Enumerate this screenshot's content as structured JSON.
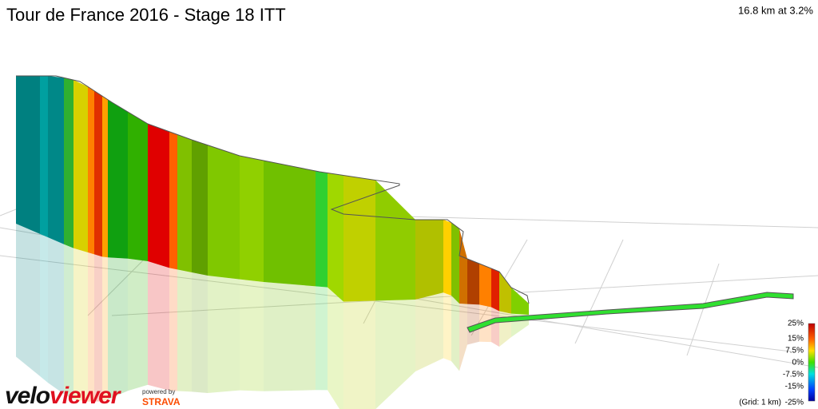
{
  "header": {
    "title": "Tour de France 2016 - Stage 18 ITT",
    "summary": "16.8 km at 3.2%"
  },
  "legend": {
    "labels": [
      "25%",
      "15%",
      "7.5%",
      "0%",
      "-7.5%",
      "-15%",
      "-25%"
    ],
    "grid_note": "(Grid: 1 km)"
  },
  "logo": {
    "velo": "velo",
    "viewer": "viewer",
    "powered_by": "powered by",
    "strava": "STRAVA"
  }
}
